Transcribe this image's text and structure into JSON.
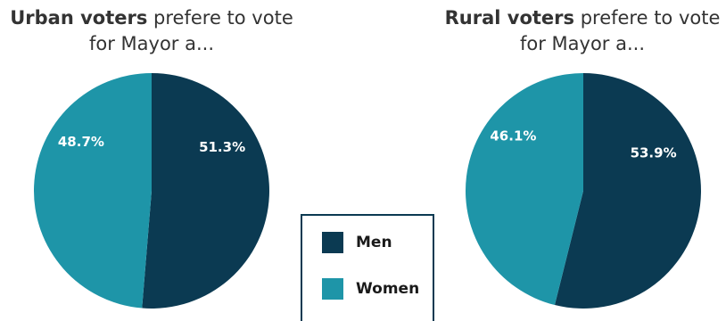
{
  "charts": [
    {
      "title_bold": "Urban voters",
      "title_rest": " prefere to vote",
      "title_line2": "for Mayor a..."
    },
    {
      "title_bold": "Rural voters",
      "title_rest": " prefere to vote",
      "title_line2": "for Mayor a..."
    }
  ],
  "legend": {
    "items": [
      {
        "label": "Men",
        "color": "#0b3a52"
      },
      {
        "label": "Women",
        "color": "#1e95a8"
      }
    ]
  },
  "chart_data": [
    {
      "type": "pie",
      "title": "Urban voters prefere to vote for Mayor a...",
      "categories": [
        "Men",
        "Women"
      ],
      "values": [
        51.3,
        48.7
      ],
      "data_labels": [
        "51.3%",
        "48.7%"
      ],
      "colors": [
        "#0b3a52",
        "#1e95a8"
      ]
    },
    {
      "type": "pie",
      "title": "Rural voters prefere to vote for Mayor a...",
      "categories": [
        "Men",
        "Women"
      ],
      "values": [
        53.9,
        46.1
      ],
      "data_labels": [
        "53.9%",
        "46.1%"
      ],
      "colors": [
        "#0b3a52",
        "#1e95a8"
      ]
    }
  ]
}
